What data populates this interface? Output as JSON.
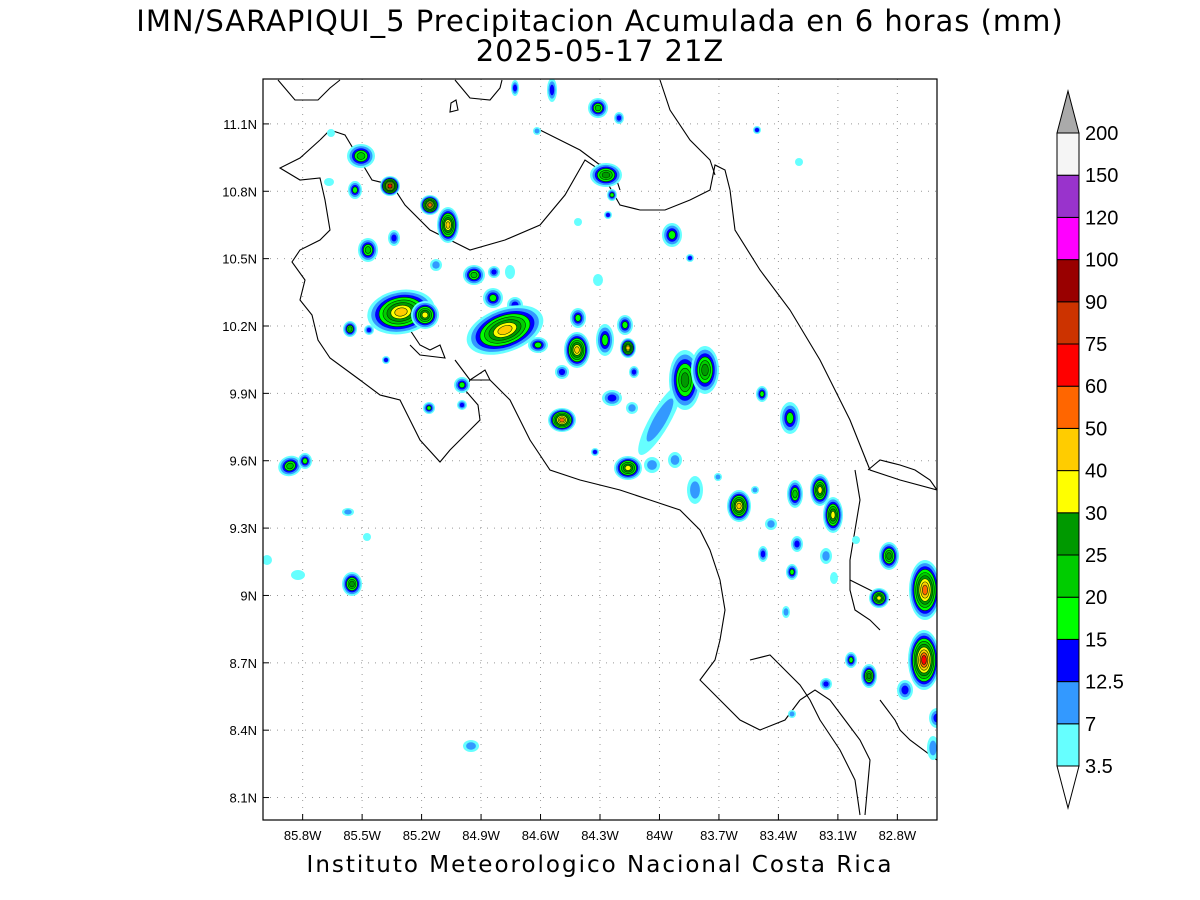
{
  "title": {
    "line1": "IMN/SARAPIQUI_5 Precipitacion Acumulada en 6 horas (mm)",
    "line2": "2025-05-17 21Z"
  },
  "footer": "Instituto Meteorologico Nacional Costa Rica",
  "map": {
    "lon_range": [
      -86.0,
      -82.6
    ],
    "lat_range": [
      8.0,
      11.3
    ],
    "lat_ticks": [
      {
        "value": 8.1,
        "label": "8.1N"
      },
      {
        "value": 8.4,
        "label": "8.4N"
      },
      {
        "value": 8.7,
        "label": "8.7N"
      },
      {
        "value": 9.0,
        "label": "9N"
      },
      {
        "value": 9.3,
        "label": "9.3N"
      },
      {
        "value": 9.6,
        "label": "9.6N"
      },
      {
        "value": 9.9,
        "label": "9.9N"
      },
      {
        "value": 10.2,
        "label": "10.2N"
      },
      {
        "value": 10.5,
        "label": "10.5N"
      },
      {
        "value": 10.8,
        "label": "10.8N"
      },
      {
        "value": 11.1,
        "label": "11.1N"
      }
    ],
    "lon_ticks": [
      {
        "value": -85.8,
        "label": "85.8W"
      },
      {
        "value": -85.5,
        "label": "85.5W"
      },
      {
        "value": -85.2,
        "label": "85.2W"
      },
      {
        "value": -84.9,
        "label": "84.9W"
      },
      {
        "value": -84.6,
        "label": "84.6W"
      },
      {
        "value": -84.3,
        "label": "84.3W"
      },
      {
        "value": -84.0,
        "label": "84W"
      },
      {
        "value": -83.7,
        "label": "83.7W"
      },
      {
        "value": -83.4,
        "label": "83.4W"
      },
      {
        "value": -83.1,
        "label": "83.1W"
      },
      {
        "value": -82.8,
        "label": "82.8W"
      }
    ],
    "grid": "dotted"
  },
  "colorbar": {
    "levels": [
      {
        "label": "3.5",
        "color": "#66ffff"
      },
      {
        "label": "7",
        "color": "#3399ff"
      },
      {
        "label": "12.5",
        "color": "#0000ff"
      },
      {
        "label": "15",
        "color": "#00ff00"
      },
      {
        "label": "20",
        "color": "#00cc00"
      },
      {
        "label": "25",
        "color": "#009900"
      },
      {
        "label": "30",
        "color": "#ffff00"
      },
      {
        "label": "40",
        "color": "#ffcc00"
      },
      {
        "label": "50",
        "color": "#ff6600"
      },
      {
        "label": "60",
        "color": "#ff0000"
      },
      {
        "label": "75",
        "color": "#cc3300"
      },
      {
        "label": "90",
        "color": "#990000"
      },
      {
        "label": "100",
        "color": "#ff00ff"
      },
      {
        "label": "120",
        "color": "#9933cc"
      },
      {
        "label": "150",
        "color": "#f5f5f5"
      },
      {
        "label": "200",
        "color": "#aaaaaa"
      }
    ]
  }
}
